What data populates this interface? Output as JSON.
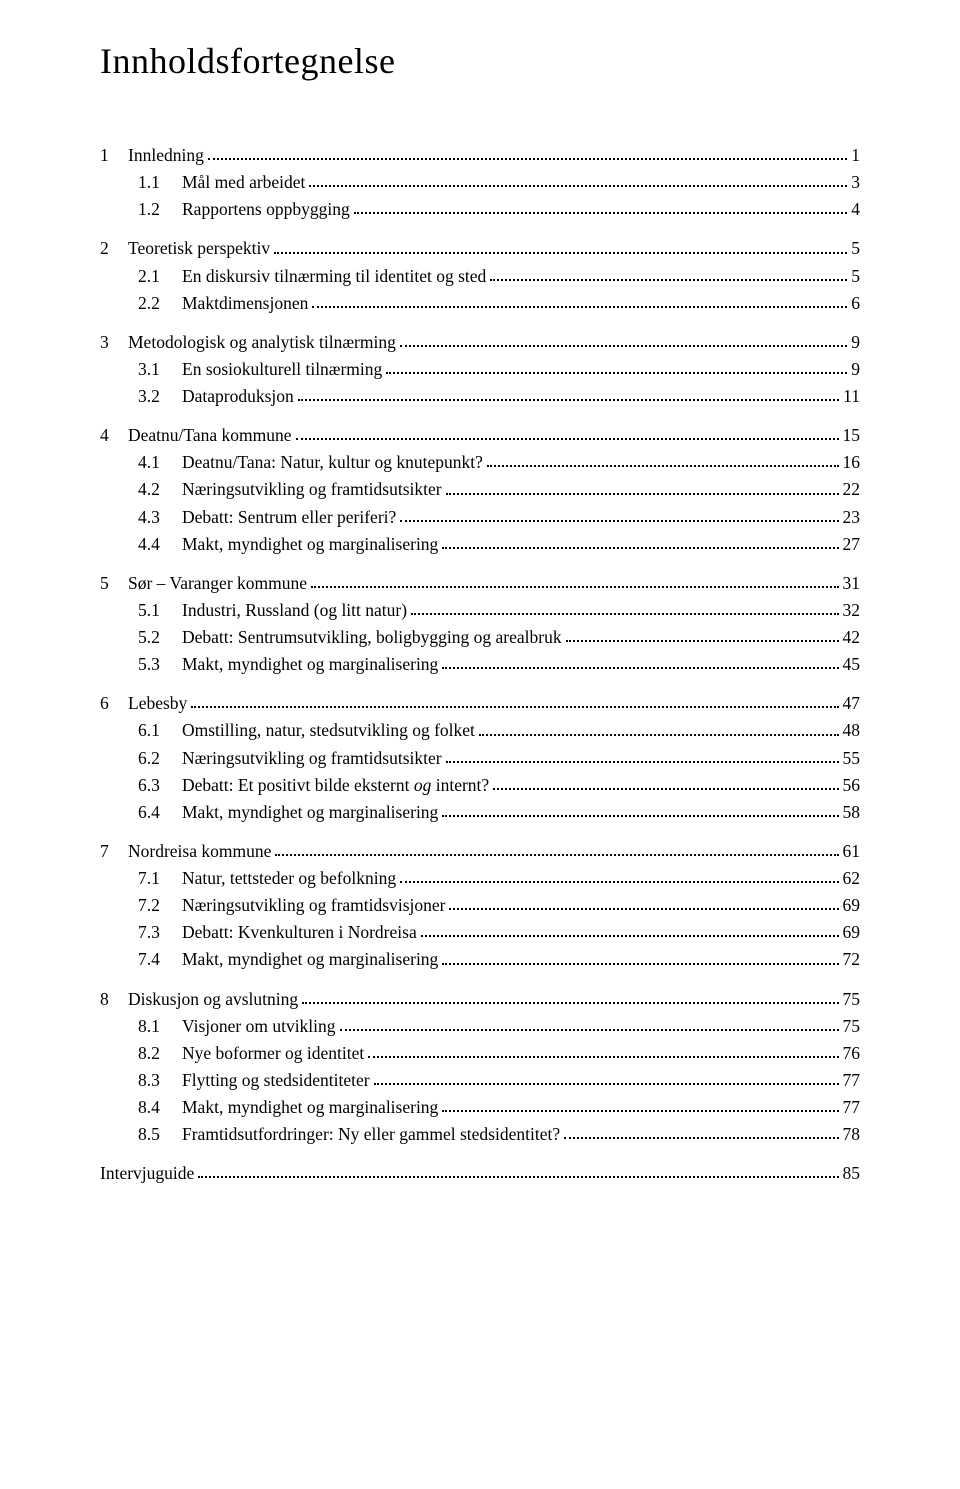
{
  "title": "Innholdsfortegnelse",
  "toc": [
    {
      "num": "1",
      "text": "Innledning",
      "page": "1",
      "children": [
        {
          "num": "1.1",
          "text": "Mål med arbeidet",
          "page": "3"
        },
        {
          "num": "1.2",
          "text": "Rapportens oppbygging",
          "page": "4"
        }
      ]
    },
    {
      "num": "2",
      "text": "Teoretisk perspektiv",
      "page": "5",
      "children": [
        {
          "num": "2.1",
          "text": "En diskursiv tilnærming til identitet og sted",
          "page": "5"
        },
        {
          "num": "2.2",
          "text": "Maktdimensjonen",
          "page": "6"
        }
      ]
    },
    {
      "num": "3",
      "text": "Metodologisk og analytisk tilnærming",
      "page": "9",
      "children": [
        {
          "num": "3.1",
          "text": "En sosiokulturell tilnærming",
          "page": "9"
        },
        {
          "num": "3.2",
          "text": "Dataproduksjon",
          "page": "11"
        }
      ]
    },
    {
      "num": "4",
      "text": "Deatnu/Tana kommune",
      "page": "15",
      "children": [
        {
          "num": "4.1",
          "text": "Deatnu/Tana: Natur, kultur og knutepunkt?",
          "page": "16"
        },
        {
          "num": "4.2",
          "text": "Næringsutvikling og framtidsutsikter",
          "page": "22"
        },
        {
          "num": "4.3",
          "text": "Debatt: Sentrum eller periferi?",
          "page": "23"
        },
        {
          "num": "4.4",
          "text": "Makt, myndighet og marginalisering",
          "page": "27"
        }
      ]
    },
    {
      "num": "5",
      "text": "Sør – Varanger kommune",
      "page": "31",
      "children": [
        {
          "num": "5.1",
          "text": "Industri, Russland (og litt natur)",
          "page": "32"
        },
        {
          "num": "5.2",
          "text": "Debatt: Sentrumsutvikling, boligbygging og arealbruk",
          "page": "42"
        },
        {
          "num": "5.3",
          "text": "Makt, myndighet og marginalisering",
          "page": "45"
        }
      ]
    },
    {
      "num": "6",
      "text": "Lebesby",
      "page": "47",
      "children": [
        {
          "num": "6.1",
          "text": "Omstilling, natur, stedsutvikling og folket",
          "page": "48"
        },
        {
          "num": "6.2",
          "text": "Næringsutvikling og framtidsutsikter",
          "page": "55"
        },
        {
          "num": "6.3",
          "text": "Debatt: Et positivt bilde eksternt og internt?",
          "page": "56",
          "italic_word": "og"
        },
        {
          "num": "6.4",
          "text": "Makt, myndighet og marginalisering",
          "page": "58"
        }
      ]
    },
    {
      "num": "7",
      "text": "Nordreisa kommune",
      "page": "61",
      "children": [
        {
          "num": "7.1",
          "text": "Natur, tettsteder og befolkning",
          "page": "62"
        },
        {
          "num": "7.2",
          "text": "Næringsutvikling og framtidsvisjoner",
          "page": "69"
        },
        {
          "num": "7.3",
          "text": "Debatt: Kvenkulturen i Nordreisa",
          "page": "69"
        },
        {
          "num": "7.4",
          "text": "Makt, myndighet og marginalisering",
          "page": "72"
        }
      ]
    },
    {
      "num": "8",
      "text": "Diskusjon og avslutning",
      "page": "75",
      "children": [
        {
          "num": "8.1",
          "text": "Visjoner om utvikling",
          "page": "75"
        },
        {
          "num": "8.2",
          "text": "Nye boformer og identitet",
          "page": "76"
        },
        {
          "num": "8.3",
          "text": "Flytting og stedsidentiteter",
          "page": "77"
        },
        {
          "num": "8.4",
          "text": "Makt, myndighet og marginalisering",
          "page": "77"
        },
        {
          "num": "8.5",
          "text": "Framtidsutfordringer: Ny eller gammel stedsidentitet?",
          "page": "78"
        }
      ]
    }
  ],
  "last_entry": {
    "text": "Intervjuguide",
    "page": "85"
  }
}
